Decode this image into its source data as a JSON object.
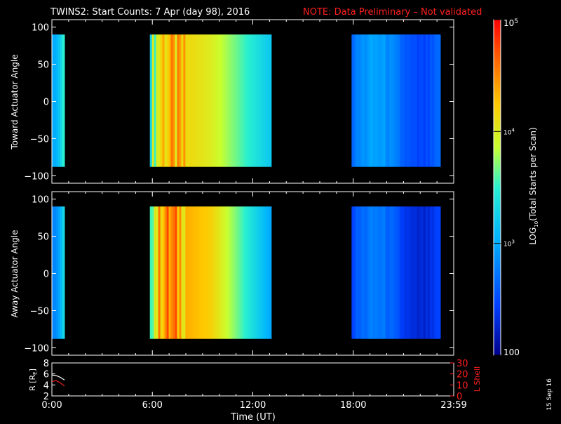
{
  "header": {
    "title": "TWINS2: Start Counts:  7 Apr (day  98), 2016",
    "note": "NOTE: Data Preliminary – Not validated",
    "note_color": "#ff2020"
  },
  "footer": {
    "stamp": "15 Sep 16"
  },
  "chart_data": [
    {
      "type": "heatmap",
      "panel": "toward",
      "ylabel": "Toward Actuator Angle",
      "ylim": [
        -110,
        110
      ],
      "yticks": [
        "100",
        "50",
        "0",
        "−50",
        "−100"
      ],
      "xlim_hours": [
        0,
        24
      ],
      "data_blocks_hours": [
        [
          0,
          0.75
        ],
        [
          5.85,
          13.1
        ],
        [
          17.9,
          23.2
        ]
      ],
      "angle_range": [
        -88,
        90
      ],
      "levels_log10": {
        "block1": 3.0,
        "block2_edge": 3.6,
        "block2_core": 4.3,
        "block2_right": 3.2,
        "block3": 2.7
      }
    },
    {
      "type": "heatmap",
      "panel": "away",
      "ylabel": "Away Actuator Angle",
      "ylim": [
        -110,
        110
      ],
      "yticks": [
        "100",
        "50",
        "0",
        "−50",
        "−100"
      ],
      "xlim_hours": [
        0,
        24
      ],
      "data_blocks_hours": [
        [
          0,
          0.75
        ],
        [
          5.85,
          13.1
        ],
        [
          17.9,
          23.2
        ]
      ],
      "angle_range": [
        -88,
        90
      ],
      "levels_log10": {
        "block1": 2.8,
        "block2_edge": 3.8,
        "block2_core": 4.5,
        "block2_right": 3.0,
        "block3": 2.5
      }
    },
    {
      "type": "line",
      "panel": "orbit",
      "ylabel_left": "R [R",
      "ylabel_left_sub": "E",
      "ylabel_left_end": "]",
      "ylabel_right": "L Shell",
      "yticks_left": [
        "8",
        "6",
        "4",
        "2"
      ],
      "yticks_right": [
        "30",
        "20",
        "10",
        "0"
      ],
      "ylim_left": [
        2,
        8
      ],
      "ylim_right": [
        0,
        30
      ],
      "xlabel": "Time (UT)",
      "xticks": [
        "0:00",
        "6:00",
        "12:00",
        "18:00",
        "23:59"
      ],
      "series": [
        {
          "color": "#ffffff",
          "x": [
            0.0,
            0.25,
            0.5,
            0.75
          ],
          "y": [
            5.8,
            5.7,
            5.4,
            4.9
          ]
        },
        {
          "color": "#ff2020",
          "x": [
            0.0,
            0.25,
            0.5,
            0.75
          ],
          "y": [
            13.0,
            14.0,
            12.0,
            9.0
          ]
        }
      ]
    }
  ],
  "colorbar": {
    "label": "LOG",
    "label_sub": "10",
    "label_end": "(Total Starts per Scan)",
    "scale": "log",
    "range": [
      100,
      100000
    ],
    "ticks": [
      {
        "base": "10",
        "exp": "5",
        "value_log10": 5
      },
      {
        "base": "10",
        "exp": "4",
        "value_log10": 4
      },
      {
        "base": "10",
        "exp": "3",
        "value_log10": 3
      },
      {
        "base": "100",
        "exp": "",
        "value_log10": 2
      }
    ]
  }
}
